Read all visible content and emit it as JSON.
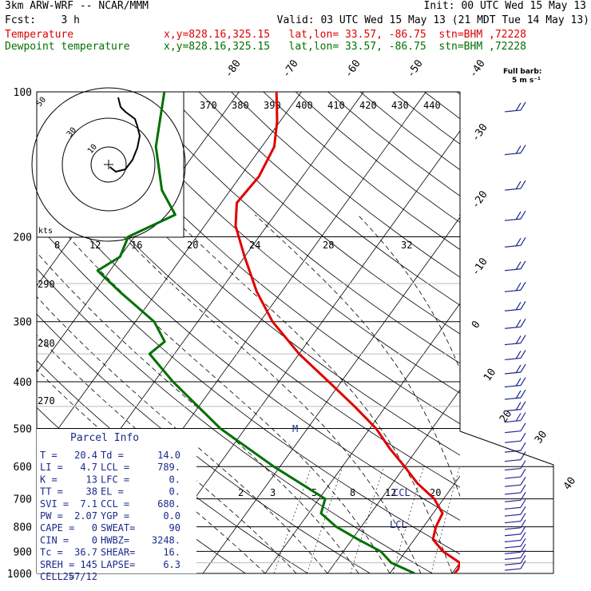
{
  "header": {
    "model": "3km ARW-WRF -- NCAR/MMM",
    "init": "Init: 00 UTC Wed 15 May 13",
    "fcst": "Fcst:    3 h",
    "valid": "Valid: 03 UTC Wed 15 May 13 (21 MDT Tue 14 May 13)",
    "temp_label": "Temperature",
    "dew_label": "Dewpoint temperature",
    "temp_loc": "x,y=828.16,325.15   lat,lon= 33.57, -86.75  stn=BHM ,72228",
    "dew_loc": "x,y=828.16,325.15   lat,lon= 33.57, -86.75  stn=BHM ,72228"
  },
  "wind_legend": {
    "line1": "Full barb:",
    "line2": "5 m s⁻¹"
  },
  "hodograph": {
    "units": "kts",
    "ring_labels": [
      "10",
      "30",
      "50"
    ]
  },
  "parcel_info": {
    "title": "Parcel Info",
    "rows": [
      [
        "T  =",
        "20.4",
        "Td =",
        "14.0"
      ],
      [
        "LI =",
        "4.7",
        "LCL =",
        "789."
      ],
      [
        "K  =",
        "13",
        "LFC =",
        "0."
      ],
      [
        "TT =",
        "38",
        "EL  =",
        "0."
      ],
      [
        "SVI =",
        "7.1",
        "CCL =",
        "680."
      ],
      [
        "PW =",
        "2.07",
        "YGP =",
        "0.0"
      ],
      [
        "CAPE =",
        "0",
        "SWEAT=",
        "90"
      ],
      [
        "CIN =",
        "0",
        "HWBZ=",
        "3248."
      ],
      [
        "Tc =",
        "36.7",
        "SHEAR=",
        "16."
      ],
      [
        "SREH =",
        "145",
        "LAPSE=",
        "6.3"
      ],
      [
        "CELL =",
        "257/12",
        "",
        ""
      ]
    ]
  },
  "chart_data": {
    "type": "line",
    "title": "",
    "xlabel": "",
    "ylabel": "",
    "pressure_levels": [
      100,
      200,
      300,
      400,
      500,
      600,
      700,
      800,
      900,
      1000
    ],
    "ylim": [
      1000,
      100
    ],
    "y_scale": "log",
    "isotherm_labels": [
      "-80",
      "-70",
      "-60",
      "-50",
      "-40",
      "-30",
      "-20",
      "-10",
      "0",
      "10",
      "20",
      "30",
      "40"
    ],
    "theta_labels": [
      "370",
      "380",
      "390",
      "400",
      "410",
      "420",
      "430",
      "440"
    ],
    "theta_low_labels": [
      "290",
      "280",
      "270"
    ],
    "mixing_ratio_upper_labels": [
      "8",
      "12",
      "16",
      "20",
      "24",
      "28",
      "32"
    ],
    "mixing_ratio_lower_labels": [
      "2",
      "3",
      "5",
      "8",
      "12",
      "20"
    ],
    "annotations": [
      "M",
      "CCL",
      "LCL"
    ],
    "series": [
      {
        "name": "Temperature",
        "color": "#e00000",
        "points": [
          [
            100,
            -64
          ],
          [
            115,
            -60.5
          ],
          [
            130,
            -58
          ],
          [
            150,
            -57
          ],
          [
            170,
            -57.5
          ],
          [
            190,
            -55
          ],
          [
            220,
            -50
          ],
          [
            260,
            -44
          ],
          [
            300,
            -38
          ],
          [
            350,
            -30
          ],
          [
            400,
            -22
          ],
          [
            450,
            -15
          ],
          [
            500,
            -9
          ],
          [
            550,
            -4.5
          ],
          [
            600,
            0
          ],
          [
            650,
            4
          ],
          [
            700,
            8.5
          ],
          [
            750,
            11.5
          ],
          [
            800,
            12
          ],
          [
            850,
            13
          ],
          [
            900,
            16
          ],
          [
            950,
            20
          ],
          [
            980,
            20.5
          ],
          [
            1000,
            20.4
          ]
        ]
      },
      {
        "name": "Dewpoint temperature",
        "color": "#007000",
        "points": [
          [
            100,
            -82
          ],
          [
            130,
            -77
          ],
          [
            160,
            -71
          ],
          [
            180,
            -66
          ],
          [
            200,
            -71
          ],
          [
            220,
            -70
          ],
          [
            235,
            -72
          ],
          [
            260,
            -66
          ],
          [
            300,
            -57
          ],
          [
            330,
            -53
          ],
          [
            350,
            -54
          ],
          [
            400,
            -47
          ],
          [
            500,
            -34
          ],
          [
            600,
            -21
          ],
          [
            700,
            -9
          ],
          [
            750,
            -8
          ],
          [
            800,
            -4
          ],
          [
            850,
            1
          ],
          [
            900,
            6
          ],
          [
            950,
            9
          ],
          [
            1000,
            14
          ]
        ]
      }
    ],
    "hodograph_trace_kts": [
      [
        0.5,
        -1
      ],
      [
        3,
        -3
      ],
      [
        7,
        -2
      ],
      [
        10,
        2
      ],
      [
        12,
        7
      ],
      [
        13,
        12
      ],
      [
        12,
        16
      ],
      [
        11,
        19
      ],
      [
        7,
        22
      ],
      [
        5,
        24
      ],
      [
        4,
        28
      ]
    ]
  }
}
